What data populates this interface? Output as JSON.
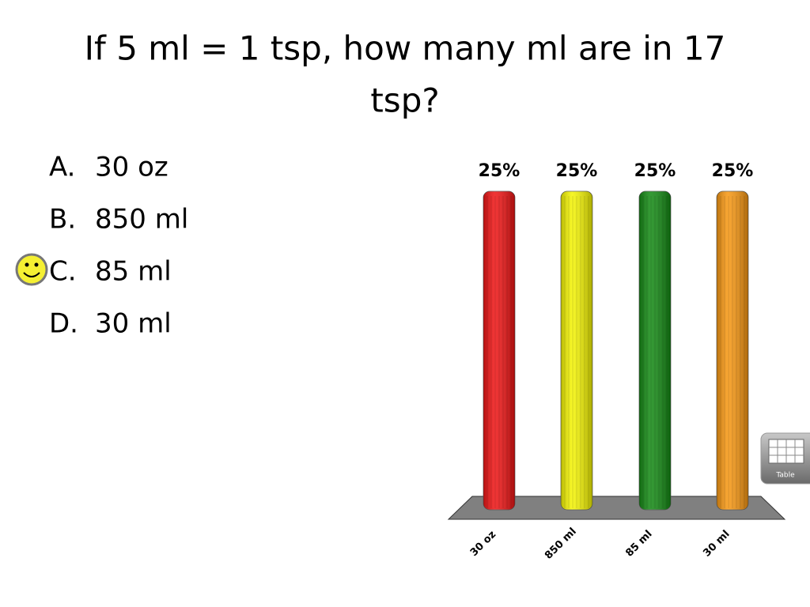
{
  "title": "If 5 ml = 1 tsp, how many ml are in 17 tsp?",
  "options": [
    {
      "letter": "A.",
      "text": "30 oz"
    },
    {
      "letter": "B.",
      "text": "850 ml"
    },
    {
      "letter": "C.",
      "text": "85 ml"
    },
    {
      "letter": "D.",
      "text": "30 ml"
    }
  ],
  "correct_option": 2,
  "table_button": "Table",
  "chart_data": {
    "type": "bar",
    "categories": [
      "30 oz",
      "850 ml",
      "85 ml",
      "30 ml"
    ],
    "values": [
      25,
      25,
      25,
      25
    ],
    "value_labels": [
      "25%",
      "25%",
      "25%",
      "25%"
    ],
    "colors": [
      "#ee1111",
      "#f4f400",
      "#118811",
      "#f7960f"
    ]
  }
}
